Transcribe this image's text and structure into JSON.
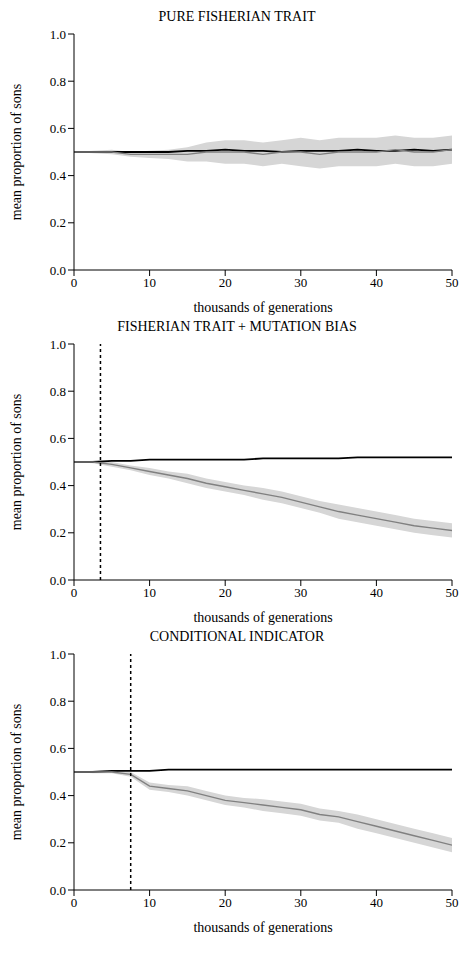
{
  "chart_data": [
    {
      "type": "line",
      "title": "PURE FISHERIAN TRAIT",
      "x_label": "thousands of generations",
      "y_label": "mean proportion of sons",
      "x": [
        0,
        2.5,
        5,
        7.5,
        10,
        12.5,
        15,
        17.5,
        20,
        22.5,
        25,
        27.5,
        30,
        32.5,
        35,
        37.5,
        40,
        42.5,
        45,
        47.5,
        50
      ],
      "xlim": [
        0,
        50
      ],
      "xticks": [
        0,
        10,
        20,
        30,
        40,
        50
      ],
      "ylim": [
        0,
        1
      ],
      "yticks": [
        {
          "value": 0,
          "label": "0.0"
        },
        {
          "value": 0.2,
          "label": "0.2"
        },
        {
          "value": 0.4,
          "label": "0.4"
        },
        {
          "value": 0.6,
          "label": "0.6"
        },
        {
          "value": 0.8,
          "label": "0.8"
        },
        {
          "value": 1,
          "label": "1.0"
        }
      ],
      "series": [
        {
          "color": "#000000",
          "values": [
            0.5,
            0.5,
            0.5,
            0.5,
            0.5,
            0.5,
            0.505,
            0.505,
            0.51,
            0.505,
            0.505,
            0.5,
            0.505,
            0.505,
            0.505,
            0.51,
            0.505,
            0.505,
            0.51,
            0.505,
            0.51
          ]
        },
        {
          "color": "#808080",
          "values": [
            0.5,
            0.5,
            0.5,
            0.49,
            0.49,
            0.49,
            0.49,
            0.5,
            0.5,
            0.5,
            0.49,
            0.5,
            0.5,
            0.49,
            0.5,
            0.5,
            0.5,
            0.51,
            0.5,
            0.5,
            0.51
          ],
          "error": [
            0,
            0.005,
            0.01,
            0.01,
            0.015,
            0.02,
            0.03,
            0.04,
            0.05,
            0.05,
            0.05,
            0.05,
            0.06,
            0.06,
            0.06,
            0.06,
            0.06,
            0.06,
            0.06,
            0.06,
            0.06
          ]
        }
      ]
    },
    {
      "type": "line",
      "title": "FISHERIAN TRAIT + MUTATION BIAS",
      "x_label": "thousands of generations",
      "y_label": "mean proportion of sons",
      "x": [
        0,
        2.5,
        5,
        7.5,
        10,
        12.5,
        15,
        17.5,
        20,
        22.5,
        25,
        27.5,
        30,
        32.5,
        35,
        37.5,
        40,
        42.5,
        45,
        47.5,
        50
      ],
      "xlim": [
        0,
        50
      ],
      "xticks": [
        0,
        10,
        20,
        30,
        40,
        50
      ],
      "ylim": [
        0,
        1
      ],
      "yticks": [
        {
          "value": 0,
          "label": "0.0"
        },
        {
          "value": 0.2,
          "label": "0.2"
        },
        {
          "value": 0.4,
          "label": "0.4"
        },
        {
          "value": 0.6,
          "label": "0.6"
        },
        {
          "value": 0.8,
          "label": "0.8"
        },
        {
          "value": 1,
          "label": "1.0"
        }
      ],
      "vline": 3.5,
      "series": [
        {
          "color": "#000000",
          "values": [
            0.5,
            0.5,
            0.505,
            0.505,
            0.51,
            0.51,
            0.51,
            0.51,
            0.51,
            0.51,
            0.515,
            0.515,
            0.515,
            0.515,
            0.515,
            0.52,
            0.52,
            0.52,
            0.52,
            0.52,
            0.52
          ]
        },
        {
          "color": "#808080",
          "values": [
            0.5,
            0.5,
            0.49,
            0.475,
            0.46,
            0.445,
            0.43,
            0.41,
            0.395,
            0.38,
            0.365,
            0.35,
            0.33,
            0.31,
            0.29,
            0.275,
            0.26,
            0.245,
            0.23,
            0.22,
            0.21
          ],
          "error": [
            0,
            0.005,
            0.01,
            0.01,
            0.015,
            0.015,
            0.02,
            0.02,
            0.02,
            0.02,
            0.025,
            0.025,
            0.025,
            0.025,
            0.03,
            0.03,
            0.03,
            0.03,
            0.03,
            0.03,
            0.03
          ]
        }
      ]
    },
    {
      "type": "line",
      "title": "CONDITIONAL INDICATOR",
      "x_label": "thousands of generations",
      "y_label": "mean proportion of sons",
      "x": [
        0,
        2.5,
        5,
        7.5,
        10,
        12.5,
        15,
        17.5,
        20,
        22.5,
        25,
        27.5,
        30,
        32.5,
        35,
        37.5,
        40,
        42.5,
        45,
        47.5,
        50
      ],
      "xlim": [
        0,
        50
      ],
      "xticks": [
        0,
        10,
        20,
        30,
        40,
        50
      ],
      "ylim": [
        0,
        1
      ],
      "yticks": [
        {
          "value": 0,
          "label": "0.0"
        },
        {
          "value": 0.2,
          "label": "0.2"
        },
        {
          "value": 0.4,
          "label": "0.4"
        },
        {
          "value": 0.6,
          "label": "0.6"
        },
        {
          "value": 0.8,
          "label": "0.8"
        },
        {
          "value": 1,
          "label": "1.0"
        }
      ],
      "vline": 7.5,
      "series": [
        {
          "color": "#000000",
          "values": [
            0.5,
            0.5,
            0.505,
            0.505,
            0.505,
            0.51,
            0.51,
            0.51,
            0.51,
            0.51,
            0.51,
            0.51,
            0.51,
            0.51,
            0.51,
            0.51,
            0.51,
            0.51,
            0.51,
            0.51,
            0.51
          ]
        },
        {
          "color": "#808080",
          "values": [
            0.5,
            0.5,
            0.5,
            0.49,
            0.44,
            0.43,
            0.42,
            0.4,
            0.38,
            0.37,
            0.36,
            0.35,
            0.34,
            0.32,
            0.31,
            0.29,
            0.27,
            0.25,
            0.23,
            0.21,
            0.19
          ],
          "error": [
            0,
            0.005,
            0.005,
            0.01,
            0.015,
            0.015,
            0.02,
            0.02,
            0.02,
            0.02,
            0.025,
            0.025,
            0.025,
            0.025,
            0.025,
            0.03,
            0.03,
            0.03,
            0.03,
            0.03,
            0.03
          ]
        }
      ]
    }
  ]
}
